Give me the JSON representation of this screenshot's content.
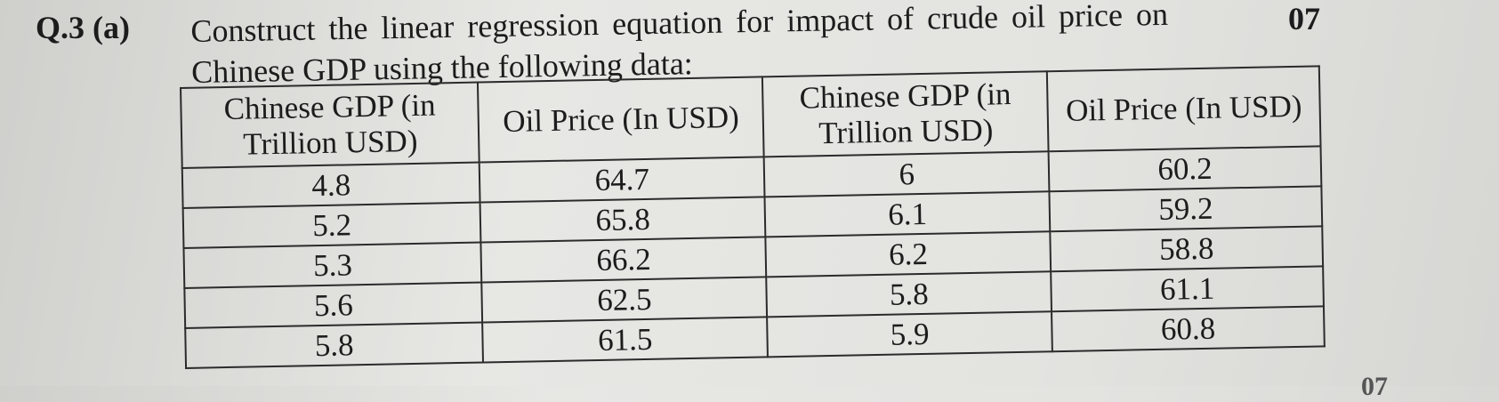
{
  "question": {
    "number": "Q.3 (a)",
    "text_line1": "Construct the linear regression equation for impact of crude oil price on",
    "text_line2": "Chinese GDP using the following data:",
    "marks": "07"
  },
  "table": {
    "headers": [
      "Chinese GDP (in Trillion USD)",
      "Oil Price (In USD)",
      "Chinese GDP (in Trillion USD)",
      "Oil Price (In USD)"
    ],
    "rows": [
      [
        "4.8",
        "64.7",
        "6",
        "60.2"
      ],
      [
        "5.2",
        "65.8",
        "6.1",
        "59.2"
      ],
      [
        "5.3",
        "66.2",
        "6.2",
        "58.8"
      ],
      [
        "5.6",
        "62.5",
        "5.8",
        "61.1"
      ],
      [
        "5.8",
        "61.5",
        "5.9",
        "60.8"
      ]
    ]
  },
  "footer_fragment": "07"
}
